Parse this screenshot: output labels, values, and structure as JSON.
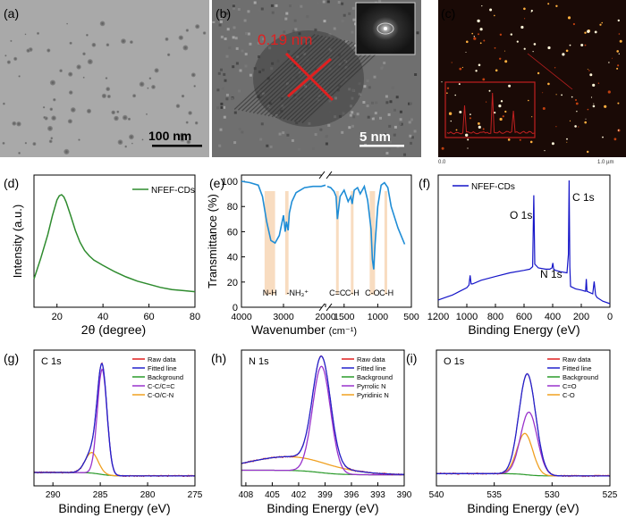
{
  "figure": {
    "images": [
      {
        "panel_label": "(a)",
        "scale_bar": "100 nm"
      },
      {
        "panel_label": "(b)",
        "lattice_label": "0.19 nm",
        "scale_bar": "5 nm"
      },
      {
        "panel_label": "(c)",
        "axis_start": "0.0",
        "axis_end": "1.0 µm"
      }
    ]
  },
  "colors": {
    "green": "#2e8b2e",
    "blue": "#1414c8",
    "red": "#e02020",
    "fitted": "#2222cc",
    "purple": "#9933cc",
    "orange": "#f0a020",
    "background_line": "#2a9a2a",
    "band": "#f8dcc0"
  },
  "chart_data": [
    {
      "panel": "(d)",
      "type": "line",
      "xlabel": "2θ (degree)",
      "ylabel": "Intensity (a.u.)",
      "xlim": [
        10,
        80
      ],
      "xticks": [
        "20",
        "40",
        "60",
        "80"
      ],
      "series": [
        {
          "name": "NFEF-CDs",
          "x": [
            10,
            13,
            16,
            18,
            20,
            21,
            22,
            23,
            24,
            26,
            28,
            30,
            32,
            34,
            36,
            40,
            45,
            50,
            55,
            60,
            65,
            70,
            75,
            80
          ],
          "y": [
            0.2,
            0.4,
            0.62,
            0.8,
            0.95,
            0.99,
            1.0,
            0.98,
            0.93,
            0.8,
            0.66,
            0.55,
            0.47,
            0.42,
            0.38,
            0.33,
            0.27,
            0.22,
            0.18,
            0.15,
            0.12,
            0.1,
            0.09,
            0.08
          ]
        }
      ]
    },
    {
      "panel": "(e)",
      "type": "line",
      "xlabel": "Wavenumber",
      "xlabel_unit": "(cm⁻¹)",
      "ylabel": "Transmittance (%)",
      "ylim": [
        0,
        105
      ],
      "yticks": [
        "0",
        "20",
        "40",
        "60",
        "80",
        "100"
      ],
      "xticks": [
        "4000",
        "3000",
        "2000",
        "1500",
        "1000",
        "500"
      ],
      "axis_break": [
        2000,
        1750
      ],
      "bands": [
        "N-H",
        "-NH₃⁺",
        "C=C",
        "C-H",
        "C-O",
        "C-H"
      ],
      "series": [
        {
          "name": "NFEF-CDs",
          "x": [
            4000,
            3800,
            3600,
            3500,
            3400,
            3300,
            3200,
            3100,
            3000,
            2960,
            2930,
            2890,
            2860,
            2800,
            2700,
            2600,
            2500,
            2300,
            2100,
            2000,
            1750,
            1700,
            1650,
            1620,
            1600,
            1560,
            1500,
            1460,
            1440,
            1400,
            1380,
            1350,
            1300,
            1260,
            1200,
            1150,
            1100,
            1080,
            1060,
            1040,
            1000,
            950,
            900,
            850,
            800,
            700,
            600
          ],
          "y": [
            100,
            99,
            97,
            88,
            68,
            53,
            51,
            57,
            73,
            60,
            68,
            61,
            75,
            84,
            91,
            93,
            95,
            96,
            96,
            97,
            96,
            95,
            92,
            88,
            70,
            88,
            93,
            87,
            84,
            88,
            82,
            93,
            95,
            90,
            96,
            85,
            62,
            38,
            30,
            50,
            80,
            97,
            99,
            95,
            80,
            63,
            50
          ]
        }
      ]
    },
    {
      "panel": "(f)",
      "type": "line",
      "xlabel": "Binding Energy (eV)",
      "xlim": [
        1200,
        0
      ],
      "xticks": [
        "1200",
        "1000",
        "800",
        "600",
        "400",
        "200",
        "0"
      ],
      "peak_labels": [
        "O 1s",
        "N 1s",
        "C 1s"
      ],
      "series": [
        {
          "name": "NFEF-CDs",
          "x": [
            1200,
            1150,
            1100,
            1050,
            1000,
            985,
            977,
            970,
            960,
            900,
            800,
            700,
            600,
            560,
            540,
            532,
            525,
            500,
            450,
            420,
            405,
            399,
            393,
            380,
            350,
            300,
            290,
            285,
            280,
            275,
            240,
            200,
            170,
            165,
            160,
            120,
            110,
            100,
            90,
            50,
            0
          ],
          "y": [
            0.03,
            0.05,
            0.07,
            0.1,
            0.13,
            0.15,
            0.23,
            0.16,
            0.16,
            0.19,
            0.22,
            0.25,
            0.27,
            0.28,
            0.3,
            0.88,
            0.32,
            0.29,
            0.28,
            0.28,
            0.29,
            0.33,
            0.28,
            0.27,
            0.26,
            0.25,
            0.4,
            1.0,
            0.3,
            0.14,
            0.12,
            0.11,
            0.1,
            0.2,
            0.1,
            0.08,
            0.18,
            0.07,
            0.05,
            0.02,
            0.0
          ]
        }
      ]
    },
    {
      "panel": "(g)",
      "type": "line",
      "core_level": "C 1s",
      "xlabel": "Binding Energy (eV)",
      "xlim": [
        292,
        275
      ],
      "xticks": [
        "290",
        "285",
        "280",
        "275"
      ],
      "legend": [
        "Raw data",
        "Fitted line",
        "Background",
        "C-C/C=C",
        "C-O/C-N"
      ],
      "components": [
        {
          "name": "C-C/C=C",
          "center": 284.8,
          "fwhm": 1.2,
          "height": 0.92
        },
        {
          "name": "C-O/C-N",
          "center": 285.9,
          "fwhm": 1.6,
          "height": 0.18
        }
      ],
      "background": {
        "left": 0.07,
        "right": 0.04,
        "center": 285.0,
        "width": 0.6
      }
    },
    {
      "panel": "(h)",
      "type": "line",
      "core_level": "N 1s",
      "xlabel": "Binding Energy (eV)",
      "xlim": [
        408.5,
        390
      ],
      "xticks": [
        "408",
        "405",
        "402",
        "399",
        "396",
        "393",
        "390"
      ],
      "legend": [
        "Raw data",
        "Fitted line",
        "Background",
        "Pyrrolic N",
        "Pyridinic N"
      ],
      "components": [
        {
          "name": "Pyrrolic N",
          "center": 399.4,
          "fwhm": 2.4,
          "height": 0.93
        },
        {
          "name": "Pyridinic N",
          "center": 403.0,
          "fwhm": 11.0,
          "height": 0.12
        }
      ],
      "background": {
        "left": 0.09,
        "right": 0.05,
        "center": 399.6,
        "width": 1.2
      }
    },
    {
      "panel": "(i)",
      "type": "line",
      "core_level": "O 1s",
      "xlabel": "Binding Energy (eV)",
      "xlim": [
        540,
        525
      ],
      "xticks": [
        "540",
        "535",
        "530",
        "525"
      ],
      "legend": [
        "Raw data",
        "Fitted line",
        "Background",
        "C=O",
        "C-O"
      ],
      "components": [
        {
          "name": "C=O",
          "center": 532.0,
          "fwhm": 1.7,
          "height": 0.55
        },
        {
          "name": "C-O",
          "center": 532.35,
          "fwhm": 1.6,
          "height": 0.36
        }
      ],
      "background": {
        "left": 0.06,
        "right": 0.04,
        "center": 532.2,
        "width": 0.5
      }
    }
  ]
}
